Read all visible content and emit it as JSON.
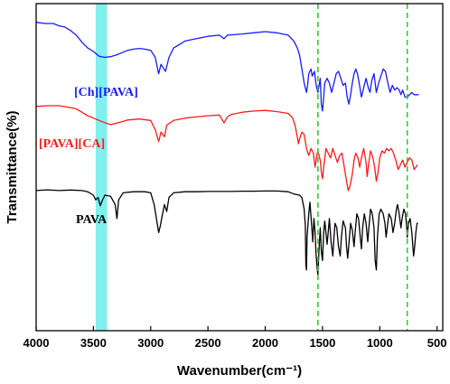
{
  "chart_data": {
    "type": "line",
    "title": "",
    "xlabel": "Wavenumber(cm⁻¹)",
    "ylabel": "Transmittance(%)",
    "xlim": [
      4000,
      450
    ],
    "x_reversed": true,
    "xticks": [
      4000,
      3500,
      3000,
      2500,
      2000,
      1500,
      1000,
      500
    ],
    "yticks_shown": false,
    "grid": false,
    "legend": "none",
    "annotations": {
      "highlight_band": {
        "x_range": [
          3480,
          3380
        ],
        "color": "#7ff0ee"
      },
      "reference_lines": [
        {
          "x": 1540,
          "color": "#33cc33",
          "style": "dashed"
        },
        {
          "x": 760,
          "color": "#33cc33",
          "style": "dashed"
        }
      ]
    },
    "series": [
      {
        "name": "[Ch][PAVA]",
        "color": "#1a1aff",
        "points": [
          [
            4000,
            92
          ],
          [
            3920,
            91.5
          ],
          [
            3850,
            91.5
          ],
          [
            3800,
            90.5
          ],
          [
            3750,
            90
          ],
          [
            3700,
            88.5
          ],
          [
            3650,
            86.5
          ],
          [
            3600,
            83.5
          ],
          [
            3550,
            81
          ],
          [
            3500,
            79.5
          ],
          [
            3450,
            77.5
          ],
          [
            3400,
            77
          ],
          [
            3350,
            77.3
          ],
          [
            3300,
            78
          ],
          [
            3250,
            79
          ],
          [
            3200,
            80
          ],
          [
            3150,
            80.5
          ],
          [
            3100,
            80.8
          ],
          [
            3050,
            80.5
          ],
          [
            3000,
            80
          ],
          [
            2960,
            77
          ],
          [
            2930,
            70
          ],
          [
            2910,
            74
          ],
          [
            2870,
            71
          ],
          [
            2840,
            77
          ],
          [
            2800,
            81
          ],
          [
            2750,
            82.5
          ],
          [
            2700,
            84
          ],
          [
            2600,
            85
          ],
          [
            2500,
            86
          ],
          [
            2400,
            86.5
          ],
          [
            2360,
            85
          ],
          [
            2330,
            86.5
          ],
          [
            2200,
            87
          ],
          [
            2100,
            87.5
          ],
          [
            2000,
            88
          ],
          [
            1900,
            87.5
          ],
          [
            1800,
            86.5
          ],
          [
            1750,
            84
          ],
          [
            1720,
            81
          ],
          [
            1700,
            78
          ],
          [
            1680,
            72
          ],
          [
            1660,
            66
          ],
          [
            1640,
            62
          ],
          [
            1630,
            65
          ],
          [
            1620,
            70
          ],
          [
            1600,
            72
          ],
          [
            1590,
            69
          ],
          [
            1570,
            71
          ],
          [
            1555,
            65
          ],
          [
            1540,
            62
          ],
          [
            1520,
            68
          ],
          [
            1510,
            57
          ],
          [
            1500,
            54
          ],
          [
            1490,
            60
          ],
          [
            1480,
            66
          ],
          [
            1460,
            68
          ],
          [
            1440,
            66
          ],
          [
            1420,
            62
          ],
          [
            1400,
            66
          ],
          [
            1380,
            70
          ],
          [
            1360,
            71
          ],
          [
            1340,
            68
          ],
          [
            1320,
            65
          ],
          [
            1300,
            66
          ],
          [
            1285,
            60
          ],
          [
            1270,
            57
          ],
          [
            1255,
            61
          ],
          [
            1240,
            66
          ],
          [
            1225,
            70
          ],
          [
            1210,
            72
          ],
          [
            1195,
            70
          ],
          [
            1180,
            66
          ],
          [
            1160,
            60
          ],
          [
            1140,
            64
          ],
          [
            1120,
            68
          ],
          [
            1100,
            64
          ],
          [
            1085,
            62
          ],
          [
            1070,
            67
          ],
          [
            1050,
            70
          ],
          [
            1030,
            62
          ],
          [
            1010,
            66
          ],
          [
            990,
            69
          ],
          [
            970,
            72
          ],
          [
            950,
            71
          ],
          [
            930,
            66
          ],
          [
            910,
            62
          ],
          [
            890,
            65
          ],
          [
            870,
            63
          ],
          [
            850,
            64
          ],
          [
            830,
            63
          ],
          [
            815,
            61
          ],
          [
            800,
            63
          ],
          [
            780,
            60
          ],
          [
            760,
            60
          ],
          [
            740,
            61
          ],
          [
            720,
            62
          ],
          [
            700,
            61
          ],
          [
            680,
            61
          ],
          [
            660,
            61
          ]
        ]
      },
      {
        "name": "[PAVA][CA]",
        "color": "#ff1a1a",
        "points": [
          [
            4000,
            56
          ],
          [
            3900,
            56.3
          ],
          [
            3800,
            56.3
          ],
          [
            3700,
            55.5
          ],
          [
            3650,
            55
          ],
          [
            3600,
            53.5
          ],
          [
            3550,
            52
          ],
          [
            3500,
            51
          ],
          [
            3450,
            50
          ],
          [
            3400,
            49
          ],
          [
            3350,
            48.2
          ],
          [
            3300,
            48.8
          ],
          [
            3250,
            49.5
          ],
          [
            3200,
            50.2
          ],
          [
            3100,
            50.6
          ],
          [
            3000,
            50
          ],
          [
            2960,
            46
          ],
          [
            2930,
            41
          ],
          [
            2910,
            45
          ],
          [
            2880,
            43
          ],
          [
            2860,
            48
          ],
          [
            2800,
            50
          ],
          [
            2700,
            51
          ],
          [
            2600,
            51.5
          ],
          [
            2500,
            52
          ],
          [
            2400,
            52.3
          ],
          [
            2360,
            49
          ],
          [
            2330,
            51.5
          ],
          [
            2300,
            52.5
          ],
          [
            2200,
            53.5
          ],
          [
            2100,
            54
          ],
          [
            2000,
            54.3
          ],
          [
            1900,
            53.8
          ],
          [
            1800,
            53
          ],
          [
            1760,
            51
          ],
          [
            1740,
            48
          ],
          [
            1720,
            43
          ],
          [
            1710,
            40
          ],
          [
            1700,
            42
          ],
          [
            1680,
            45
          ],
          [
            1660,
            44
          ],
          [
            1640,
            38
          ],
          [
            1620,
            35
          ],
          [
            1600,
            38
          ],
          [
            1580,
            36
          ],
          [
            1565,
            30
          ],
          [
            1550,
            35
          ],
          [
            1540,
            37
          ],
          [
            1520,
            33
          ],
          [
            1510,
            28
          ],
          [
            1500,
            25
          ],
          [
            1490,
            30
          ],
          [
            1470,
            38
          ],
          [
            1450,
            36
          ],
          [
            1430,
            34
          ],
          [
            1410,
            38
          ],
          [
            1390,
            35
          ],
          [
            1370,
            32
          ],
          [
            1350,
            35
          ],
          [
            1330,
            36
          ],
          [
            1310,
            30
          ],
          [
            1290,
            24
          ],
          [
            1275,
            20
          ],
          [
            1260,
            22
          ],
          [
            1240,
            27
          ],
          [
            1225,
            33
          ],
          [
            1210,
            36
          ],
          [
            1190,
            34
          ],
          [
            1175,
            30
          ],
          [
            1160,
            34
          ],
          [
            1140,
            38
          ],
          [
            1120,
            32
          ],
          [
            1110,
            26
          ],
          [
            1095,
            32
          ],
          [
            1080,
            37
          ],
          [
            1060,
            34
          ],
          [
            1045,
            30
          ],
          [
            1030,
            24
          ],
          [
            1015,
            28
          ],
          [
            1000,
            34
          ],
          [
            980,
            37
          ],
          [
            960,
            36
          ],
          [
            940,
            38
          ],
          [
            920,
            37
          ],
          [
            900,
            38
          ],
          [
            880,
            36
          ],
          [
            860,
            33
          ],
          [
            840,
            29
          ],
          [
            820,
            31
          ],
          [
            800,
            33
          ],
          [
            780,
            30
          ],
          [
            760,
            32
          ],
          [
            740,
            34
          ],
          [
            720,
            33
          ],
          [
            700,
            29
          ],
          [
            685,
            30
          ],
          [
            670,
            31
          ]
        ]
      },
      {
        "name": "PAVA",
        "color": "#000000",
        "points": [
          [
            4000,
            20
          ],
          [
            3900,
            20.3
          ],
          [
            3800,
            20
          ],
          [
            3700,
            20.2
          ],
          [
            3600,
            20
          ],
          [
            3550,
            19.5
          ],
          [
            3500,
            18
          ],
          [
            3480,
            16
          ],
          [
            3460,
            17
          ],
          [
            3440,
            13.5
          ],
          [
            3420,
            16
          ],
          [
            3400,
            18
          ],
          [
            3350,
            17.5
          ],
          [
            3310,
            14
          ],
          [
            3295,
            8
          ],
          [
            3280,
            16
          ],
          [
            3240,
            19
          ],
          [
            3150,
            19.5
          ],
          [
            3050,
            19.5
          ],
          [
            3000,
            19
          ],
          [
            2970,
            14
          ],
          [
            2950,
            8
          ],
          [
            2930,
            2
          ],
          [
            2915,
            5
          ],
          [
            2900,
            9
          ],
          [
            2880,
            14
          ],
          [
            2860,
            11
          ],
          [
            2840,
            17
          ],
          [
            2800,
            19
          ],
          [
            2700,
            19.5
          ],
          [
            2600,
            19.5
          ],
          [
            2500,
            19.6
          ],
          [
            2400,
            19.6
          ],
          [
            2300,
            19.6
          ],
          [
            2200,
            19.7
          ],
          [
            2100,
            19.7
          ],
          [
            2000,
            19.8
          ],
          [
            1900,
            19.8
          ],
          [
            1800,
            19.5
          ],
          [
            1750,
            18.5
          ],
          [
            1700,
            18
          ],
          [
            1680,
            17
          ],
          [
            1660,
            12
          ],
          [
            1650,
            5
          ],
          [
            1645,
            -12
          ],
          [
            1640,
            -14
          ],
          [
            1635,
            0
          ],
          [
            1620,
            10
          ],
          [
            1610,
            15
          ],
          [
            1595,
            5
          ],
          [
            1585,
            -2
          ],
          [
            1575,
            8
          ],
          [
            1565,
            2
          ],
          [
            1555,
            -8
          ],
          [
            1545,
            -14
          ],
          [
            1540,
            -16
          ],
          [
            1530,
            -5
          ],
          [
            1520,
            4
          ],
          [
            1510,
            -6
          ],
          [
            1500,
            -10
          ],
          [
            1490,
            2
          ],
          [
            1480,
            7
          ],
          [
            1470,
            2
          ],
          [
            1460,
            -3
          ],
          [
            1450,
            2
          ],
          [
            1440,
            8
          ],
          [
            1425,
            -2
          ],
          [
            1410,
            -8
          ],
          [
            1400,
            0
          ],
          [
            1390,
            6
          ],
          [
            1375,
            4
          ],
          [
            1360,
            -4
          ],
          [
            1345,
            -8
          ],
          [
            1335,
            0
          ],
          [
            1320,
            7
          ],
          [
            1300,
            4
          ],
          [
            1290,
            -4
          ],
          [
            1280,
            -9
          ],
          [
            1270,
            -3
          ],
          [
            1255,
            6
          ],
          [
            1240,
            3
          ],
          [
            1225,
            -4
          ],
          [
            1215,
            2
          ],
          [
            1200,
            10
          ],
          [
            1185,
            8
          ],
          [
            1170,
            0
          ],
          [
            1160,
            -5
          ],
          [
            1150,
            4
          ],
          [
            1135,
            10
          ],
          [
            1120,
            6
          ],
          [
            1105,
            -2
          ],
          [
            1095,
            4
          ],
          [
            1080,
            12
          ],
          [
            1065,
            10
          ],
          [
            1050,
            4
          ],
          [
            1040,
            -10
          ],
          [
            1030,
            -14
          ],
          [
            1020,
            0
          ],
          [
            1005,
            10
          ],
          [
            990,
            12
          ],
          [
            970,
            10
          ],
          [
            955,
            6
          ],
          [
            945,
            0
          ],
          [
            935,
            4
          ],
          [
            920,
            10
          ],
          [
            900,
            8
          ],
          [
            885,
            2
          ],
          [
            870,
            6
          ],
          [
            855,
            12
          ],
          [
            845,
            14
          ],
          [
            830,
            10
          ],
          [
            815,
            4
          ],
          [
            805,
            8
          ],
          [
            790,
            12
          ],
          [
            775,
            10
          ],
          [
            765,
            4
          ],
          [
            760,
            0
          ],
          [
            750,
            6
          ],
          [
            735,
            8
          ],
          [
            720,
            2
          ],
          [
            705,
            -8
          ],
          [
            695,
            -4
          ],
          [
            685,
            2
          ],
          [
            675,
            6
          ],
          [
            665,
            6
          ]
        ]
      }
    ]
  }
}
